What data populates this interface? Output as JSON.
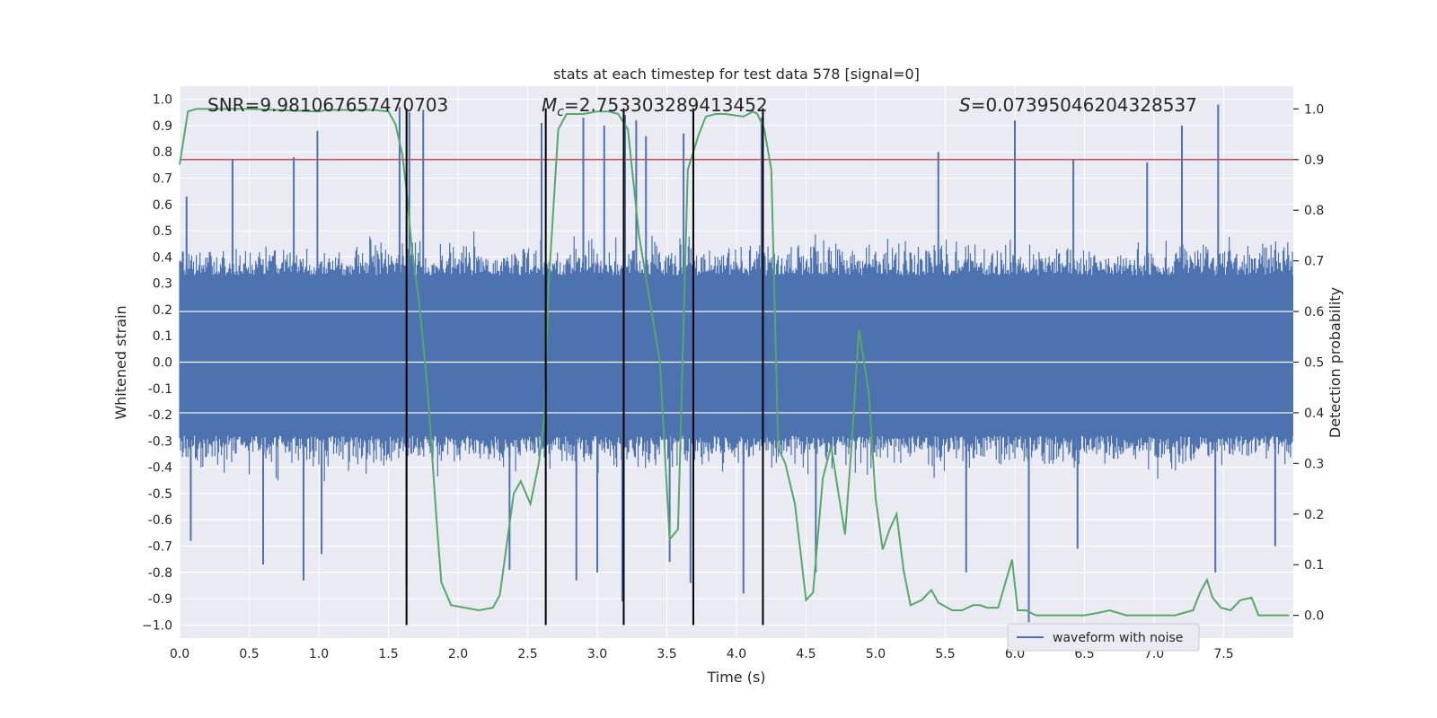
{
  "chart_data": {
    "type": "line",
    "title": "stats at each timestep for test data 578 [signal=0]",
    "xlabel": "Time (s)",
    "ylabel_left": "Whitened strain",
    "ylabel_right": "Detection probability",
    "xlim": [
      0.0,
      8.0
    ],
    "ylim_left": [
      -1.05,
      1.05
    ],
    "ylim_right": [
      -0.045,
      1.045
    ],
    "x_ticks": [
      0.0,
      0.5,
      1.0,
      1.5,
      2.0,
      2.5,
      3.0,
      3.5,
      4.0,
      4.5,
      5.0,
      5.5,
      6.0,
      6.5,
      7.0,
      7.5
    ],
    "x_tick_labels": [
      "0.0",
      "0.5",
      "1.0",
      "1.5",
      "2.0",
      "2.5",
      "3.0",
      "3.5",
      "4.0",
      "4.5",
      "5.0",
      "5.5",
      "6.0",
      "6.5",
      "7.0",
      "7.5"
    ],
    "y_ticks_left": [
      1.0,
      0.9,
      0.8,
      0.7,
      0.6,
      0.5,
      0.4,
      0.3,
      0.2,
      0.1,
      0.0,
      -0.1,
      -0.2,
      -0.3,
      -0.4,
      -0.5,
      -0.6,
      -0.7,
      -0.8,
      -0.9,
      -1.0
    ],
    "y_tick_labels_left": [
      "1.0",
      "0.9",
      "0.8",
      "0.7",
      "0.6",
      "0.5",
      "0.4",
      "0.3",
      "0.2",
      "0.1",
      "0.0",
      "-0.1",
      "-0.2",
      "-0.3",
      "-0.4",
      "-0.5",
      "-0.6",
      "-0.7",
      "-0.8",
      "-0.9",
      "−1.0"
    ],
    "y_ticks_right": [
      1.0,
      0.9,
      0.8,
      0.7,
      0.6,
      0.5,
      0.4,
      0.3,
      0.2,
      0.1,
      0.0
    ],
    "y_tick_labels_right": [
      "1.0",
      "0.9",
      "0.8",
      "0.7",
      "0.6",
      "0.5",
      "0.4",
      "0.3",
      "0.2",
      "0.1",
      "0.0"
    ],
    "grid": true,
    "annotations": [
      {
        "prefix": "SNR",
        "italic_sub": "",
        "value": "=9.981067657470703",
        "x_data": 0.2
      },
      {
        "prefix": "M",
        "italic_sub": "c",
        "value": "=2.753303289413452",
        "x_data": 2.6
      },
      {
        "prefix": "S",
        "italic_sub": "",
        "value": "=0.07395046204328537",
        "x_data": 5.6
      }
    ],
    "series": [
      {
        "name": "waveform with noise",
        "axis": "left",
        "color": "#4c72b0",
        "style": "dense_noise",
        "sample_count": 1200,
        "seed": 578,
        "band_lower": -0.28,
        "band_upper": 0.33,
        "peaks": [
          {
            "x": 0.38,
            "y": 0.77
          },
          {
            "x": 0.82,
            "y": 0.78
          },
          {
            "x": 0.99,
            "y": 0.88
          },
          {
            "x": 1.58,
            "y": 0.97
          },
          {
            "x": 1.65,
            "y": 0.95
          },
          {
            "x": 1.75,
            "y": 0.96
          },
          {
            "x": 2.6,
            "y": 0.91
          },
          {
            "x": 2.9,
            "y": 0.93
          },
          {
            "x": 3.05,
            "y": 0.9
          },
          {
            "x": 3.2,
            "y": 0.94
          },
          {
            "x": 3.28,
            "y": 0.92
          },
          {
            "x": 3.35,
            "y": 0.86
          },
          {
            "x": 3.62,
            "y": 0.87
          },
          {
            "x": 4.18,
            "y": 0.93
          },
          {
            "x": 5.45,
            "y": 0.8
          },
          {
            "x": 6.0,
            "y": 0.92
          },
          {
            "x": 6.42,
            "y": 0.77
          },
          {
            "x": 6.95,
            "y": 0.76
          },
          {
            "x": 7.2,
            "y": 0.9
          },
          {
            "x": 7.46,
            "y": 0.98
          },
          {
            "x": 0.05,
            "y": 0.63
          },
          {
            "x": 0.6,
            "y": -0.77
          },
          {
            "x": 0.89,
            "y": -0.83
          },
          {
            "x": 1.63,
            "y": -0.85
          },
          {
            "x": 2.37,
            "y": -0.79
          },
          {
            "x": 2.85,
            "y": -0.83
          },
          {
            "x": 3.0,
            "y": -0.8
          },
          {
            "x": 3.18,
            "y": -0.91
          },
          {
            "x": 3.52,
            "y": -0.76
          },
          {
            "x": 3.67,
            "y": -0.84
          },
          {
            "x": 4.05,
            "y": -0.88
          },
          {
            "x": 4.57,
            "y": -0.8
          },
          {
            "x": 5.65,
            "y": -0.8
          },
          {
            "x": 6.1,
            "y": -0.99
          },
          {
            "x": 7.44,
            "y": -0.8
          },
          {
            "x": 7.87,
            "y": -0.7
          },
          {
            "x": 0.08,
            "y": -0.68
          },
          {
            "x": 1.02,
            "y": -0.73
          },
          {
            "x": 6.45,
            "y": -0.71
          }
        ]
      },
      {
        "name": "",
        "axis": "right",
        "color": "#55a868",
        "style": "line",
        "x": [
          0.0,
          0.06,
          0.12,
          0.5,
          1.0,
          1.05,
          1.2,
          1.4,
          1.5,
          1.55,
          1.6,
          1.63,
          1.67,
          1.72,
          1.78,
          1.85,
          1.88,
          1.95,
          2.05,
          2.15,
          2.25,
          2.3,
          2.4,
          2.45,
          2.52,
          2.58,
          2.62,
          2.65,
          2.72,
          2.78,
          2.9,
          3.0,
          3.08,
          3.15,
          3.22,
          3.3,
          3.45,
          3.52,
          3.58,
          3.65,
          3.73,
          3.78,
          3.85,
          3.92,
          4.05,
          4.12,
          4.15,
          4.2,
          4.25,
          4.3,
          4.35,
          4.42,
          4.5,
          4.55,
          4.62,
          4.68,
          4.73,
          4.78,
          4.83,
          4.88,
          4.95,
          5.0,
          5.05,
          5.1,
          5.15,
          5.2,
          5.25,
          5.33,
          5.4,
          5.45,
          5.55,
          5.62,
          5.7,
          5.75,
          5.8,
          5.88,
          5.98,
          6.02,
          6.08,
          6.15,
          6.25,
          6.35,
          6.5,
          6.6,
          6.68,
          6.8,
          7.0,
          7.15,
          7.28,
          7.33,
          7.38,
          7.42,
          7.48,
          7.55,
          7.62,
          7.7,
          7.75,
          7.82,
          7.97
        ],
        "y": [
          0.89,
          0.995,
          1.0,
          1.0,
          0.995,
          0.998,
          0.998,
          0.998,
          0.995,
          0.97,
          0.91,
          0.84,
          0.72,
          0.62,
          0.45,
          0.17,
          0.065,
          0.02,
          0.015,
          0.01,
          0.015,
          0.04,
          0.24,
          0.265,
          0.22,
          0.3,
          0.39,
          0.65,
          0.96,
          0.99,
          0.99,
          0.995,
          0.995,
          0.99,
          0.96,
          0.75,
          0.5,
          0.15,
          0.17,
          0.88,
          0.95,
          0.985,
          0.99,
          0.99,
          0.985,
          0.995,
          0.99,
          0.96,
          0.88,
          0.33,
          0.3,
          0.22,
          0.03,
          0.045,
          0.27,
          0.335,
          0.245,
          0.16,
          0.345,
          0.565,
          0.44,
          0.23,
          0.13,
          0.17,
          0.2,
          0.09,
          0.02,
          0.03,
          0.05,
          0.025,
          0.01,
          0.01,
          0.02,
          0.02,
          0.015,
          0.015,
          0.11,
          0.01,
          0.01,
          0.0,
          0.0,
          0.0,
          0.0,
          0.005,
          0.01,
          0.0,
          0.0,
          0.0,
          0.01,
          0.045,
          0.07,
          0.035,
          0.015,
          0.01,
          0.03,
          0.035,
          0.0,
          0.0,
          0.0
        ]
      }
    ],
    "threshold": {
      "axis": "right",
      "value": 0.9,
      "color": "#c44e52"
    },
    "vertical_lines": {
      "color": "#000000",
      "x": [
        1.63,
        2.63,
        3.19,
        3.69,
        4.19
      ],
      "y_top": 1.0,
      "y_bottom": -1.0
    },
    "legend": {
      "position": "lower-right",
      "entries": [
        {
          "label": "waveform with noise",
          "color": "#4c72b0"
        }
      ]
    },
    "style": {
      "background": "#eaeaf2",
      "grid_color": "#ffffff"
    }
  }
}
